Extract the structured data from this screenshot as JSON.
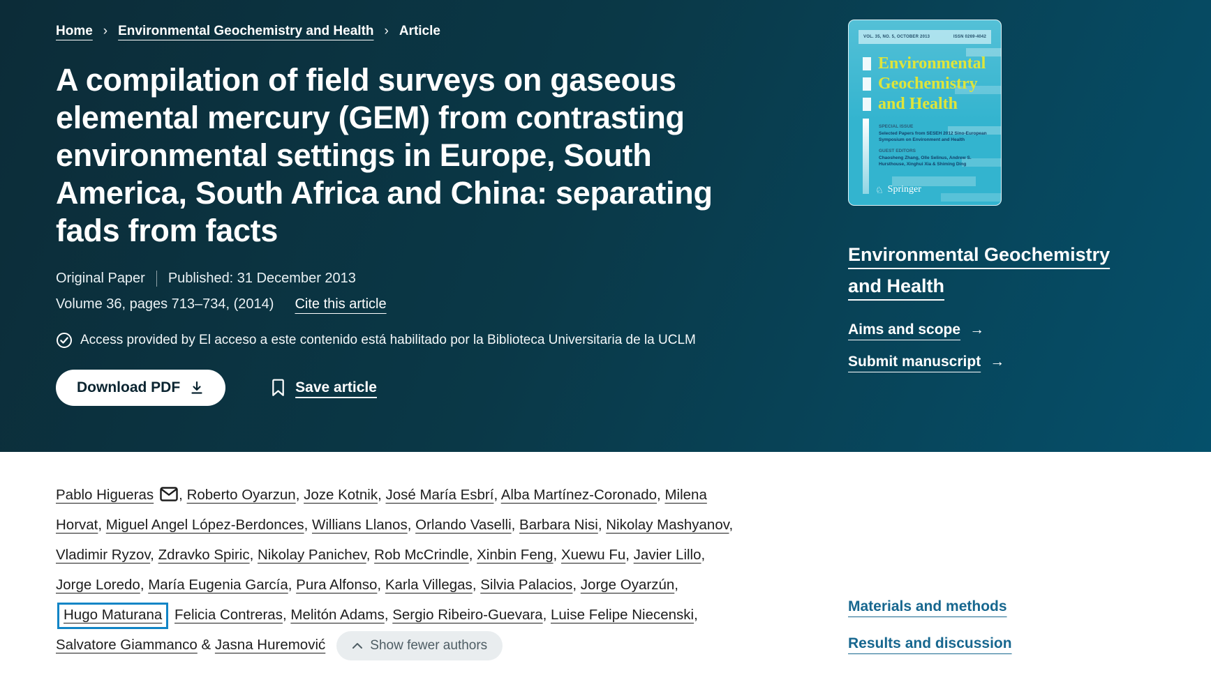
{
  "colors": {
    "header_gradient_start": "#0c2c38",
    "header_gradient_end": "#05506b",
    "toc_link_blue": "#17678f",
    "selection_box_blue": "#1285c6",
    "cover_background_cyan": "#33b4cf",
    "cover_title_yellow": "#dfe53a",
    "show_fewer_pill_gray": "#e9edef"
  },
  "icons": {
    "chevron_right": "›",
    "arrow_right": "→"
  },
  "hero": {
    "breadcrumb": {
      "home": "Home",
      "journal": "Environmental Geochemistry and Health",
      "current": "Article"
    },
    "title_lines": [
      "A compilation of field surveys on gaseous",
      "elemental mercury (GEM) from contrasting",
      "environmental settings in Europe, South",
      "America, South Africa and China: separating",
      "fads from facts"
    ],
    "title_full": "A compilation of field surveys on gaseous elemental mercury (GEM) from contrasting environmental settings in Europe, South America, South Africa and China: separating fads from facts",
    "article_type": "Original Paper",
    "published": "Published: 31 December 2013",
    "volume_pages": "Volume 36, pages 713–734, (2014)",
    "cite_link": "Cite this article",
    "access_note": "Access provided by El acceso a este contenido está habilitado por la Biblioteca Universitaria de la UCLM",
    "download_pdf": "Download PDF",
    "save_article": "Save article"
  },
  "sidebar": {
    "cover": {
      "masthead_left": "VOL. 35, NO. 5, OCTOBER 2013",
      "masthead_right": "ISSN 0269-4042",
      "title_lines": [
        "Environmental",
        "Geochemistry",
        "and Health"
      ],
      "special_issue_label": "SPECIAL ISSUE",
      "special_issue_text": "Selected Papers from SESEH 2012 Sino-European Symposium on Environment and Health",
      "guest_editors_label": "GUEST EDITORS",
      "guest_editors_text": "Chaosheng Zhang, Olle Selinus, Andrew S. Hursthouse, Xinghui Xia & Shiming Ding",
      "publisher": "Springer"
    },
    "journal_title": "Environmental Geochemistry and Health",
    "aims_link": "Aims and scope",
    "submit_link": "Submit manuscript",
    "toc_links": [
      "Materials and methods",
      "Results and discussion"
    ]
  },
  "authors": {
    "show_fewer_label": "Show fewer authors",
    "items": [
      {
        "name": "Pablo Higueras",
        "envelope": true,
        "sep": ", "
      },
      {
        "name": "Roberto Oyarzun",
        "sep": ", "
      },
      {
        "name": "Joze Kotnik",
        "sep": ", "
      },
      {
        "name": "José María Esbrí",
        "sep": ", "
      },
      {
        "name": "Alba Martínez-Coronado",
        "sep": ", "
      },
      {
        "name": "Milena Horvat",
        "sep": ", "
      },
      {
        "name": "Miguel Angel López-Berdonces",
        "sep": ", "
      },
      {
        "name": "Willians Llanos",
        "sep": ", "
      },
      {
        "name": "Orlando Vaselli",
        "sep": ", "
      },
      {
        "name": "Barbara Nisi",
        "sep": ", "
      },
      {
        "name": "Nikolay Mashyanov",
        "sep": ", "
      },
      {
        "name": "Vladimir Ryzov",
        "sep": ", "
      },
      {
        "name": "Zdravko Spiric",
        "sep": ", "
      },
      {
        "name": "Nikolay Panichev",
        "sep": ", "
      },
      {
        "name": "Rob McCrindle",
        "sep": ", "
      },
      {
        "name": "Xinbin Feng",
        "sep": ", "
      },
      {
        "name": "Xuewu Fu",
        "sep": ", "
      },
      {
        "name": "Javier Lillo",
        "sep": ", "
      },
      {
        "name": "Jorge Loredo",
        "sep": ", "
      },
      {
        "name": "María Eugenia García",
        "sep": ", "
      },
      {
        "name": "Pura Alfonso",
        "sep": ", "
      },
      {
        "name": "Karla Villegas",
        "sep": ", "
      },
      {
        "name": "Silvia Palacios",
        "sep": ", "
      },
      {
        "name": "Jorge Oyarzún",
        "sep": ", "
      },
      {
        "name": "Hugo Maturana",
        "boxed": true,
        "sep": " "
      },
      {
        "name": "Felicia Contreras",
        "sep": ", "
      },
      {
        "name": "Melitón Adams",
        "sep": ", "
      },
      {
        "name": "Sergio Ribeiro-Guevara",
        "sep": ", "
      },
      {
        "name": "Luise Felipe Niecenski",
        "sep": ", "
      },
      {
        "name": "Salvatore Giammanco",
        "sep": " & "
      },
      {
        "name": "Jasna Huremović",
        "sep": ""
      }
    ]
  }
}
